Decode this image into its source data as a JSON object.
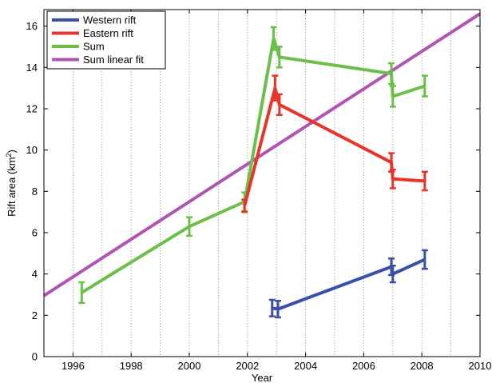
{
  "chart_data": {
    "type": "line",
    "xlabel": "Year",
    "ylabel": "Rift area (km",
    "ylabel_sup": "2",
    "ylabel_close": ")",
    "xlim": [
      1995,
      2010
    ],
    "ylim": [
      0,
      16.8
    ],
    "xticks": [
      "1996",
      "1998",
      "2000",
      "2002",
      "2004",
      "2006",
      "2008",
      "2010"
    ],
    "xtick_values": [
      1996,
      1998,
      2000,
      2002,
      2004,
      2006,
      2008,
      2010
    ],
    "yticks": [
      "0",
      "2",
      "4",
      "6",
      "8",
      "10",
      "12",
      "14",
      "16"
    ],
    "ytick_values": [
      0,
      2,
      4,
      6,
      8,
      10,
      12,
      14,
      16
    ],
    "x_grid": [
      1995,
      1996,
      1997,
      1998,
      1999,
      2000,
      2001,
      2002,
      2003,
      2004,
      2005,
      2006,
      2007,
      2008,
      2009,
      2010
    ],
    "grid": "vertical dotted lines at every year",
    "legend_position": "top-left",
    "series": [
      {
        "name": "Western rift",
        "color": "#3a50a8",
        "points": [
          {
            "x": 2002.85,
            "y": 2.35,
            "err": 0.4
          },
          {
            "x": 2003.05,
            "y": 2.3,
            "err": 0.4
          },
          {
            "x": 2006.95,
            "y": 4.35,
            "err": 0.4
          },
          {
            "x": 2007.0,
            "y": 4.0,
            "err": 0.4
          },
          {
            "x": 2008.1,
            "y": 4.7,
            "err": 0.45
          }
        ]
      },
      {
        "name": "Eastern rift",
        "color": "#e8352a",
        "points": [
          {
            "x": 2001.9,
            "y": 7.3,
            "err": 0.3
          },
          {
            "x": 2002.95,
            "y": 13.0,
            "err": 0.6
          },
          {
            "x": 2003.1,
            "y": 12.2,
            "err": 0.5
          },
          {
            "x": 2006.95,
            "y": 9.4,
            "err": 0.45
          },
          {
            "x": 2007.0,
            "y": 8.6,
            "err": 0.45
          },
          {
            "x": 2008.1,
            "y": 8.5,
            "err": 0.45
          }
        ]
      },
      {
        "name": "Sum",
        "color": "#6cc04a",
        "points": [
          {
            "x": 1996.3,
            "y": 3.1,
            "err": 0.5
          },
          {
            "x": 2000.0,
            "y": 6.3,
            "err": 0.45
          },
          {
            "x": 2001.9,
            "y": 7.5,
            "err": 0.45
          },
          {
            "x": 2002.9,
            "y": 15.4,
            "err": 0.55
          },
          {
            "x": 2003.1,
            "y": 14.5,
            "err": 0.5
          },
          {
            "x": 2006.95,
            "y": 13.7,
            "err": 0.5
          },
          {
            "x": 2007.0,
            "y": 12.6,
            "err": 0.5
          },
          {
            "x": 2008.1,
            "y": 13.1,
            "err": 0.5
          }
        ]
      },
      {
        "name": "Sum linear fit",
        "color": "#b155b4",
        "points": [
          {
            "x": 1995,
            "y": 2.95
          },
          {
            "x": 2010,
            "y": 16.6
          }
        ]
      }
    ]
  }
}
